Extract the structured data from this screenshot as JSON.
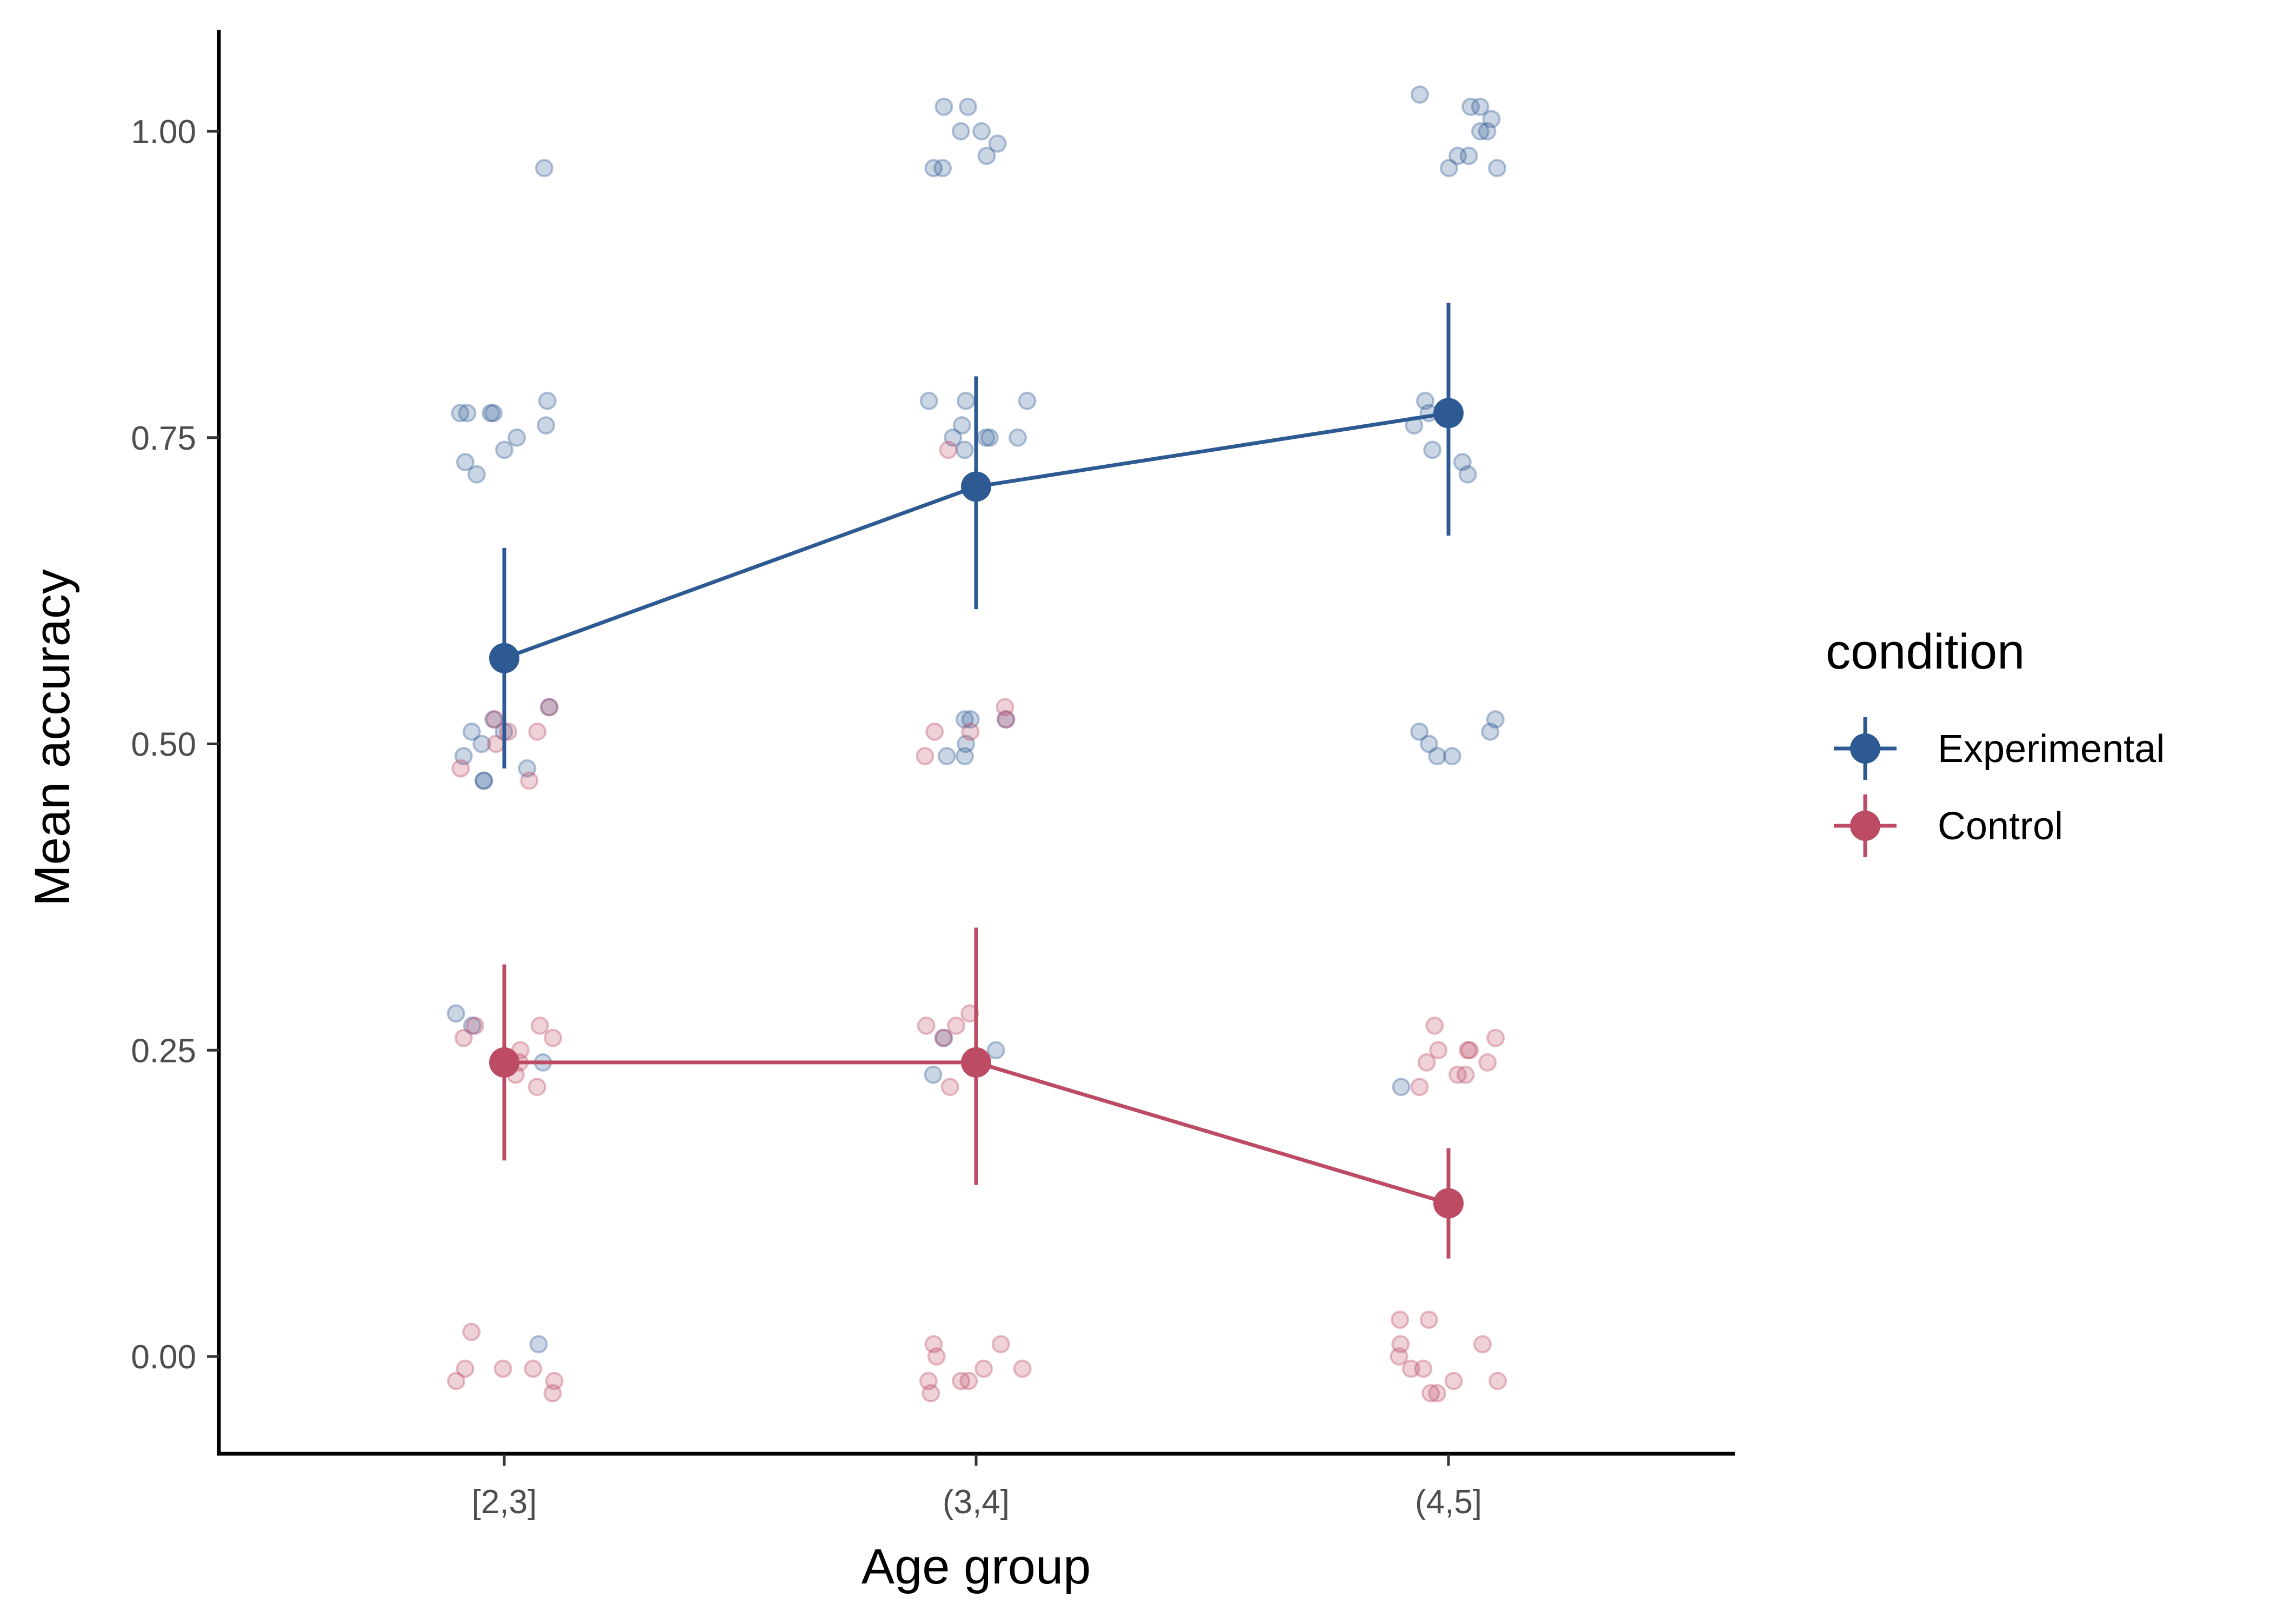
{
  "chart_data": {
    "type": "scatter",
    "xlabel": "Age group",
    "ylabel": "Mean accuracy",
    "categories": [
      "[2,3]",
      "(3,4]",
      "(4,5]"
    ],
    "y_ticks": [
      "0.00",
      "0.25",
      "0.50",
      "0.75",
      "1.00"
    ],
    "y_tick_values": [
      0,
      0.25,
      0.5,
      0.75,
      1.0
    ],
    "ylim": [
      -0.08,
      1.08
    ],
    "grid": false,
    "legend": {
      "title": "condition",
      "placement": "right",
      "entries": [
        "Experimental",
        "Control"
      ]
    },
    "series": [
      {
        "name": "Experimental",
        "color": "#2E5A94",
        "means": [
          0.57,
          0.71,
          0.77
        ],
        "ci_low": [
          0.48,
          0.61,
          0.67
        ],
        "ci_high": [
          0.66,
          0.8,
          0.86
        ],
        "points": [
          [
            1,
            [
              0.97,
              0.78,
              0.77,
              0.77,
              0.76,
              0.77,
              0.77,
              0.74,
              0.75,
              0.72,
              0.73,
              0.53,
              0.52,
              0.51,
              0.51,
              0.5,
              0.49,
              0.48,
              0.47,
              0.47,
              0.28,
              0.24,
              0.27,
              0.01
            ]
          ],
          [
            2,
            [
              1.02,
              1.02,
              1.0,
              1.0,
              0.99,
              0.98,
              0.97,
              0.97,
              0.78,
              0.78,
              0.78,
              0.76,
              0.75,
              0.75,
              0.75,
              0.75,
              0.74,
              0.52,
              0.52,
              0.52,
              0.5,
              0.49,
              0.49,
              0.26,
              0.25,
              0.23
            ]
          ],
          [
            3,
            [
              1.03,
              1.02,
              1.02,
              1.01,
              1.0,
              1.0,
              0.98,
              0.98,
              0.97,
              0.97,
              0.78,
              0.77,
              0.76,
              0.74,
              0.73,
              0.72,
              0.51,
              0.51,
              0.52,
              0.5,
              0.49,
              0.49,
              0.22
            ]
          ]
        ]
      },
      {
        "name": "Control",
        "color": "#BC4B63",
        "means": [
          0.24,
          0.24,
          0.125
        ],
        "ci_low": [
          0.16,
          0.14,
          0.08
        ],
        "ci_high": [
          0.32,
          0.35,
          0.17
        ],
        "points": [
          [
            1,
            [
              0.53,
              0.52,
              0.51,
              0.51,
              0.5,
              0.48,
              0.47,
              0.27,
              0.27,
              0.26,
              0.26,
              0.25,
              0.24,
              0.23,
              0.22,
              0.02,
              -0.01,
              -0.01,
              -0.02,
              -0.02,
              -0.03,
              -0.01
            ]
          ],
          [
            2,
            [
              0.53,
              0.52,
              0.51,
              0.51,
              0.49,
              0.74,
              0.28,
              0.27,
              0.27,
              0.26,
              0.22,
              0.01,
              0.01,
              0.0,
              -0.01,
              -0.01,
              -0.02,
              -0.02,
              -0.03,
              -0.02
            ]
          ],
          [
            3,
            [
              0.27,
              0.26,
              0.25,
              0.25,
              0.25,
              0.24,
              0.24,
              0.23,
              0.23,
              0.22,
              0.03,
              0.03,
              0.01,
              0.01,
              0.0,
              -0.01,
              -0.01,
              -0.02,
              -0.02,
              -0.03,
              -0.03
            ]
          ]
        ]
      }
    ]
  }
}
